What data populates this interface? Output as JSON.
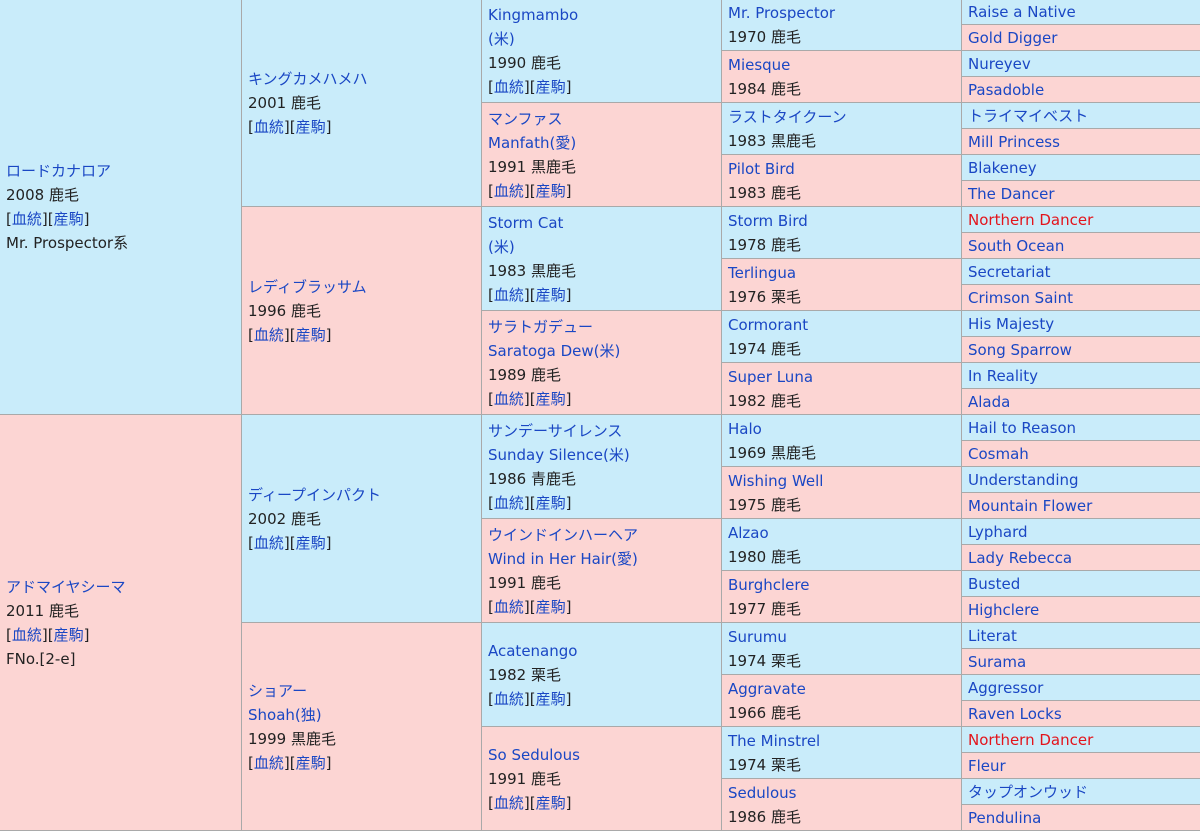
{
  "labels": {
    "bloodline": "血統",
    "offspring": "産駒"
  },
  "sire": {
    "name": "ロードカナロア",
    "info": "2008 鹿毛",
    "extra": "Mr. Prospector系",
    "sire": {
      "name": "キングカメハメハ",
      "info": "2001 鹿毛",
      "sire": {
        "name": "Kingmambo",
        "origin": "(米)",
        "info": "1990 鹿毛",
        "sire": {
          "name": "Mr. Prospector",
          "info": "1970 鹿毛",
          "sire": "Raise a Native",
          "dam": "Gold Digger"
        },
        "dam": {
          "name": "Miesque",
          "info": "1984 鹿毛",
          "sire": "Nureyev",
          "dam": "Pasadoble"
        }
      },
      "dam": {
        "name": "マンファス",
        "origin": "Manfath(愛)",
        "info": "1991 黒鹿毛",
        "sire": {
          "name": "ラストタイクーン",
          "info": "1983 黒鹿毛",
          "sire": "トライマイベスト",
          "dam": "Mill Princess"
        },
        "dam": {
          "name": "Pilot Bird",
          "info": "1983 鹿毛",
          "sire": "Blakeney",
          "dam": "The Dancer"
        }
      }
    },
    "dam": {
      "name": "レディブラッサム",
      "info": "1996 鹿毛",
      "sire": {
        "name": "Storm Cat",
        "origin": "(米)",
        "info": "1983 黒鹿毛",
        "sire": {
          "name": "Storm Bird",
          "info": "1978 鹿毛",
          "sire": "Northern Dancer",
          "dam": "South Ocean"
        },
        "dam": {
          "name": "Terlingua",
          "info": "1976 栗毛",
          "sire": "Secretariat",
          "dam": "Crimson Saint"
        }
      },
      "dam": {
        "name": "サラトガデュー",
        "origin": "Saratoga Dew(米)",
        "info": "1989 鹿毛",
        "sire": {
          "name": "Cormorant",
          "info": "1974 鹿毛",
          "sire": "His Majesty",
          "dam": "Song Sparrow"
        },
        "dam": {
          "name": "Super Luna",
          "info": "1982 鹿毛",
          "sire": "In Reality",
          "dam": "Alada"
        }
      }
    }
  },
  "dam": {
    "name": "アドマイヤシーマ",
    "info": "2011 鹿毛",
    "extra": "FNo.[2-e]",
    "sire": {
      "name": "ディープインパクト",
      "info": "2002 鹿毛",
      "sire": {
        "name": "サンデーサイレンス",
        "origin": "Sunday Silence(米)",
        "info": "1986 青鹿毛",
        "sire": {
          "name": "Halo",
          "info": "1969 黒鹿毛",
          "sire": "Hail to Reason",
          "dam": "Cosmah"
        },
        "dam": {
          "name": "Wishing Well",
          "info": "1975 鹿毛",
          "sire": "Understanding",
          "dam": "Mountain Flower"
        }
      },
      "dam": {
        "name": "ウインドインハーヘア",
        "origin": "Wind in Her Hair(愛)",
        "info": "1991 鹿毛",
        "sire": {
          "name": "Alzao",
          "info": "1980 鹿毛",
          "sire": "Lyphard",
          "dam": "Lady Rebecca"
        },
        "dam": {
          "name": "Burghclere",
          "info": "1977 鹿毛",
          "sire": "Busted",
          "dam": "Highclere"
        }
      }
    },
    "dam": {
      "name": "ショアー",
      "origin": "Shoah(独)",
      "info": "1999 黒鹿毛",
      "sire": {
        "name": "Acatenango",
        "info": "1982 栗毛",
        "sire": {
          "name": "Surumu",
          "info": "1974 栗毛",
          "sire": "Literat",
          "dam": "Surama"
        },
        "dam": {
          "name": "Aggravate",
          "info": "1966 鹿毛",
          "sire": "Aggressor",
          "dam": "Raven Locks"
        }
      },
      "dam": {
        "name": "So Sedulous",
        "info": "1991 鹿毛",
        "sire": {
          "name": "The Minstrel",
          "info": "1974 栗毛",
          "sire": "Northern Dancer",
          "dam": "Fleur"
        },
        "dam": {
          "name": "Sedulous",
          "info": "1986 鹿毛",
          "sire": "タップオンウッド",
          "dam": "Pendulina"
        }
      }
    }
  },
  "highlight_names": [
    "Northern Dancer"
  ],
  "colors": {
    "male_bg": "#c9ecfa",
    "female_bg": "#fcd5d3",
    "link": "#1a47c4",
    "highlight": "#e3141b",
    "border": "#a9a9a9"
  }
}
